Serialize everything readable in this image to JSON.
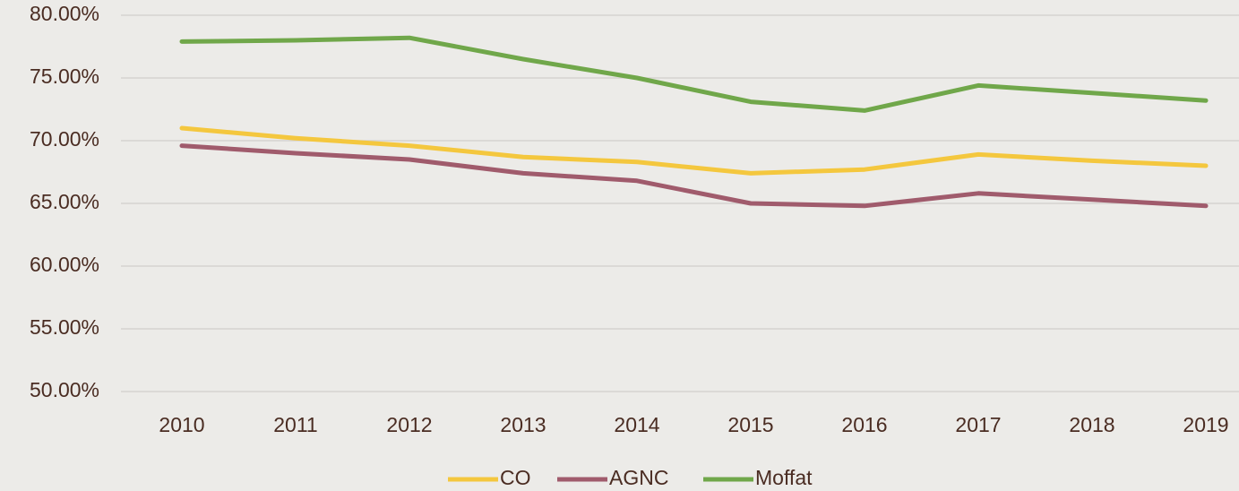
{
  "chart_data": {
    "type": "line",
    "categories": [
      "2010",
      "2011",
      "2012",
      "2013",
      "2014",
      "2015",
      "2016",
      "2017",
      "2018",
      "2019"
    ],
    "series": [
      {
        "name": "CO",
        "color": "#f4c73e",
        "values": [
          71.0,
          70.2,
          69.6,
          68.7,
          68.3,
          67.4,
          67.7,
          68.9,
          68.4,
          68.0
        ]
      },
      {
        "name": "AGNC",
        "color": "#a05b6c",
        "values": [
          69.6,
          69.0,
          68.5,
          67.4,
          66.8,
          65.0,
          64.8,
          65.8,
          65.3,
          64.8
        ]
      },
      {
        "name": "Moffat",
        "color": "#70a74a",
        "values": [
          77.9,
          78.0,
          78.2,
          76.5,
          75.0,
          73.1,
          72.4,
          74.4,
          73.8,
          73.2
        ]
      }
    ],
    "ylim": [
      50,
      80
    ],
    "yticks": [
      {
        "value": 50,
        "label": "50.00%"
      },
      {
        "value": 55,
        "label": "55.00%"
      },
      {
        "value": 60,
        "label": "60.00%"
      },
      {
        "value": 65,
        "label": "65.00%"
      },
      {
        "value": 70,
        "label": "70.00%"
      },
      {
        "value": 75,
        "label": "75.00%"
      },
      {
        "value": 80,
        "label": "80.00%"
      }
    ],
    "grid": true,
    "legend": "bottom"
  }
}
